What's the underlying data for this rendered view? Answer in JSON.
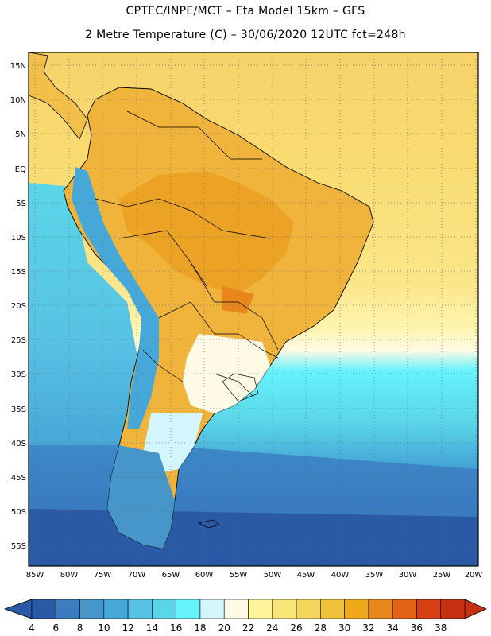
{
  "header": {
    "line1": "CPTEC/INPE/MCT –  Eta Model 15km – GFS",
    "line2": "2 Metre Temperature (C) – 30/06/2020 12UTC fct=248h"
  },
  "map": {
    "lat_labels": [
      "15N",
      "10N",
      "5N",
      "EQ",
      "5S",
      "10S",
      "15S",
      "20S",
      "25S",
      "30S",
      "35S",
      "40S",
      "45S",
      "50S",
      "55S"
    ],
    "lon_labels": [
      "85W",
      "80W",
      "75W",
      "70W",
      "65W",
      "60W",
      "55W",
      "50W",
      "45W",
      "40W",
      "35W",
      "30W",
      "25W",
      "20W"
    ]
  },
  "colorbar": {
    "labels": [
      "4",
      "6",
      "8",
      "10",
      "12",
      "14",
      "16",
      "18",
      "20",
      "22",
      "24",
      "26",
      "28",
      "30",
      "32",
      "34",
      "36",
      "38"
    ],
    "colors": [
      "#2a5aa5",
      "#3a7cc0",
      "#4696c9",
      "#46a8d8",
      "#58c2e4",
      "#5ad6e8",
      "#66f2fc",
      "#d2f6fc",
      "#fffae6",
      "#fff59a",
      "#fae678",
      "#f5d65c",
      "#f0c23c",
      "#f0a81c",
      "#e8861c",
      "#e06414",
      "#d64012",
      "#c43010"
    ],
    "low_color": "#2a5aa5",
    "high_color": "#c43010"
  }
}
